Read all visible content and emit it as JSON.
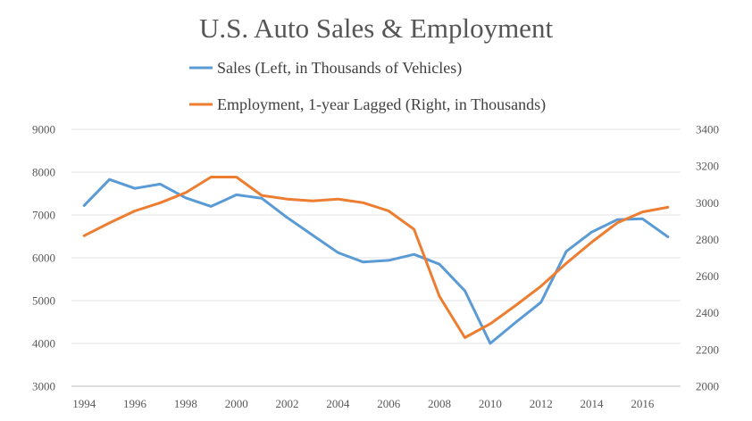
{
  "chart_data": {
    "type": "line",
    "title": "U.S. Auto Sales & Employment",
    "x": [
      1994,
      1995,
      1996,
      1997,
      1998,
      1999,
      2000,
      2001,
      2002,
      2003,
      2004,
      2005,
      2006,
      2007,
      2008,
      2009,
      2010,
      2011,
      2012,
      2013,
      2014,
      2015,
      2016,
      2017
    ],
    "x_tick_labels": [
      "1994",
      "1996",
      "1998",
      "2000",
      "2002",
      "2004",
      "2006",
      "2008",
      "2010",
      "2012",
      "2014",
      "2016"
    ],
    "y_left": {
      "lim": [
        3000,
        9000
      ],
      "ticks": [
        "3000",
        "4000",
        "5000",
        "6000",
        "7000",
        "8000",
        "9000"
      ]
    },
    "y_right": {
      "lim": [
        2000,
        3400
      ],
      "ticks": [
        "2000",
        "2200",
        "2400",
        "2600",
        "2800",
        "3000",
        "3200",
        "3400"
      ]
    },
    "grid": "horizontal",
    "legend": "top",
    "series": [
      {
        "name": "Sales (Left, in Thousands of Vehicles)",
        "axis": "left",
        "color": "#5b9bd5",
        "values": [
          7220,
          7830,
          7620,
          7720,
          7400,
          7200,
          7470,
          7390,
          6940,
          6530,
          6120,
          5900,
          5940,
          6080,
          5850,
          5230,
          4000,
          4490,
          4960,
          6150,
          6600,
          6890,
          6910,
          6490
        ]
      },
      {
        "name": "Employment, 1-year Lagged (Right, in Thousands)",
        "axis": "right",
        "color": "#ed7d31",
        "values": [
          2820,
          2890,
          2955,
          3000,
          3055,
          3140,
          3140,
          3040,
          3020,
          3010,
          3020,
          3000,
          2955,
          2855,
          2490,
          2265,
          2340,
          2440,
          2545,
          2670,
          2785,
          2890,
          2950,
          2975
        ]
      }
    ]
  }
}
